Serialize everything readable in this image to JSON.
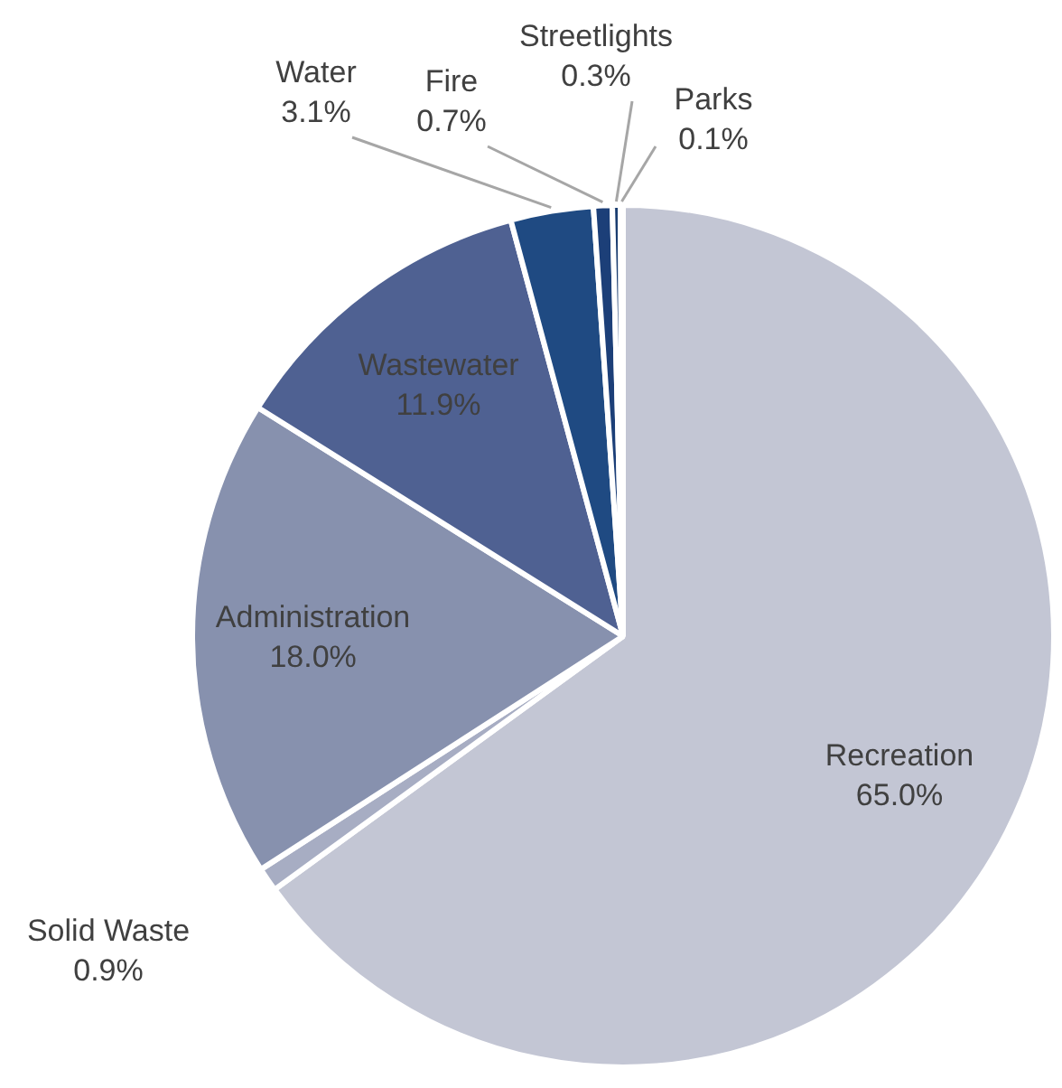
{
  "chart_data": {
    "type": "pie",
    "categories": [
      "Recreation",
      "Solid Waste",
      "Administration",
      "Wastewater",
      "Water",
      "Fire",
      "Streetlights",
      "Parks"
    ],
    "values": [
      65.0,
      0.9,
      18.0,
      11.9,
      3.1,
      0.7,
      0.3,
      0.1
    ],
    "colors": [
      "#c3c6d4",
      "#a7adc3",
      "#8791ae",
      "#4f6192",
      "#1f4a82",
      "#1c3f78",
      "#1a3d70",
      "#9aa3bd"
    ],
    "value_labels": [
      "65.0%",
      "0.9%",
      "18.0%",
      "11.9%",
      "3.1%",
      "0.7%",
      "0.3%",
      "0.1%"
    ]
  }
}
